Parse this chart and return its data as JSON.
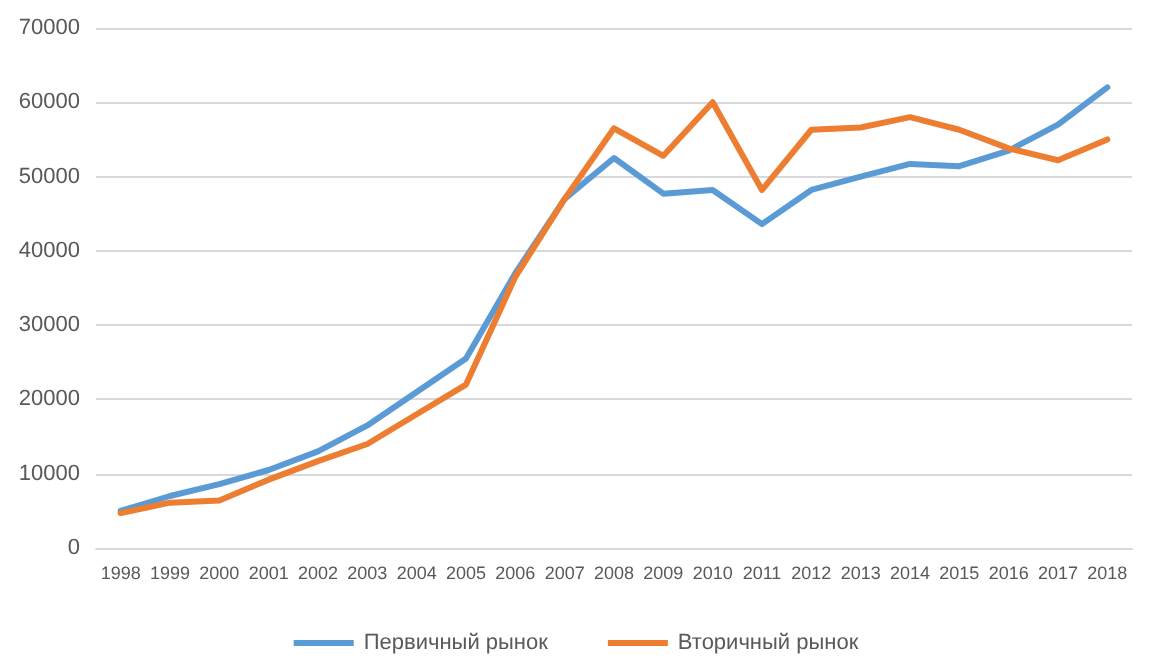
{
  "chart_data": {
    "type": "line",
    "categories": [
      "1998",
      "1999",
      "2000",
      "2001",
      "2002",
      "2003",
      "2004",
      "2005",
      "2006",
      "2007",
      "2008",
      "2009",
      "2010",
      "2011",
      "2012",
      "2013",
      "2014",
      "2015",
      "2016",
      "2017",
      "2018"
    ],
    "series": [
      {
        "name": "Первичный рынок",
        "color": "#5b9bd5",
        "values": [
          5000,
          7000,
          8600,
          10500,
          13000,
          16500,
          21000,
          25500,
          37000,
          47000,
          52500,
          47700,
          48200,
          43600,
          48200,
          50000,
          51700,
          51400,
          53500,
          57000,
          62000
        ]
      },
      {
        "name": "Вторичный рынок",
        "color": "#ed7d31",
        "values": [
          4700,
          6100,
          6400,
          9200,
          11700,
          14000,
          18000,
          22000,
          36500,
          47000,
          56500,
          52800,
          60000,
          48200,
          56300,
          56600,
          58000,
          56300,
          53800,
          52200,
          55000
        ]
      }
    ],
    "ylim": [
      0,
      70000
    ],
    "yticks": [
      0,
      10000,
      20000,
      30000,
      40000,
      50000,
      60000,
      70000
    ],
    "grid": "y",
    "legend": "bottom",
    "marker": "none",
    "line_style": "solid"
  }
}
